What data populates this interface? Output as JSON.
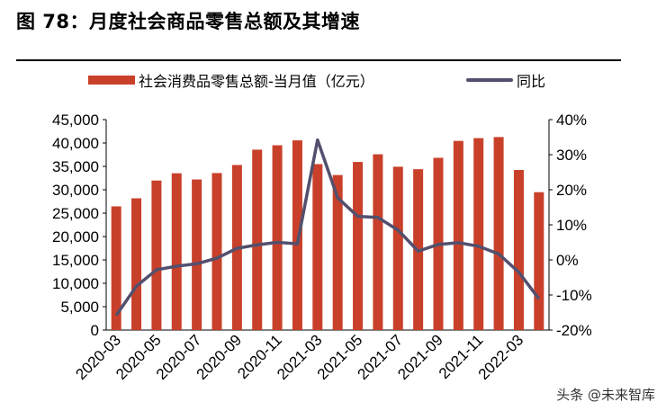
{
  "title": "图 78：月度社会商品零售总额及其增速",
  "watermark": "头条 @未来智库",
  "colors": {
    "bar": "#c9402a",
    "line": "#52506e"
  },
  "chart_data": {
    "type": "bar+line",
    "categories": [
      "2020-03",
      "2020-04",
      "2020-05",
      "2020-06",
      "2020-07",
      "2020-08",
      "2020-09",
      "2020-10",
      "2020-11",
      "2020-12",
      "2021-03",
      "2021-04",
      "2021-05",
      "2021-06",
      "2021-07",
      "2021-08",
      "2021-09",
      "2021-10",
      "2021-11",
      "2021-12",
      "2022-03",
      "2022-04"
    ],
    "tick_labels": [
      "2020-03",
      "2020-05",
      "2020-07",
      "2020-09",
      "2020-11",
      "2021-03",
      "2021-05",
      "2021-07",
      "2021-09",
      "2021-11",
      "2022-03"
    ],
    "series": [
      {
        "name": "社会消费品零售总额-当月值（亿元）",
        "type": "bar",
        "axis": "left",
        "values": [
          26450,
          28178,
          31973,
          33526,
          32203,
          33571,
          35295,
          38576,
          39514,
          40566,
          35484,
          33153,
          35945,
          37586,
          34925,
          34395,
          36833,
          40454,
          41043,
          41269,
          34233,
          29483
        ]
      },
      {
        "name": "同比",
        "type": "line",
        "axis": "right",
        "values": [
          -15.8,
          -7.5,
          -2.8,
          -1.8,
          -1.1,
          0.5,
          3.3,
          4.3,
          5.0,
          4.6,
          34.2,
          17.7,
          12.4,
          12.1,
          8.5,
          2.5,
          4.4,
          4.9,
          3.9,
          1.7,
          -3.5,
          -11.1
        ]
      }
    ],
    "ylim_left": [
      0,
      45000
    ],
    "yticks_left": [
      "0",
      "5,000",
      "10,000",
      "15,000",
      "20,000",
      "25,000",
      "30,000",
      "35,000",
      "40,000",
      "45,000"
    ],
    "ylim_right": [
      -20,
      40
    ],
    "yticks_right": [
      "-20%",
      "-10%",
      "0%",
      "10%",
      "20%",
      "30%",
      "40%"
    ],
    "grid": false,
    "legend": "top"
  }
}
